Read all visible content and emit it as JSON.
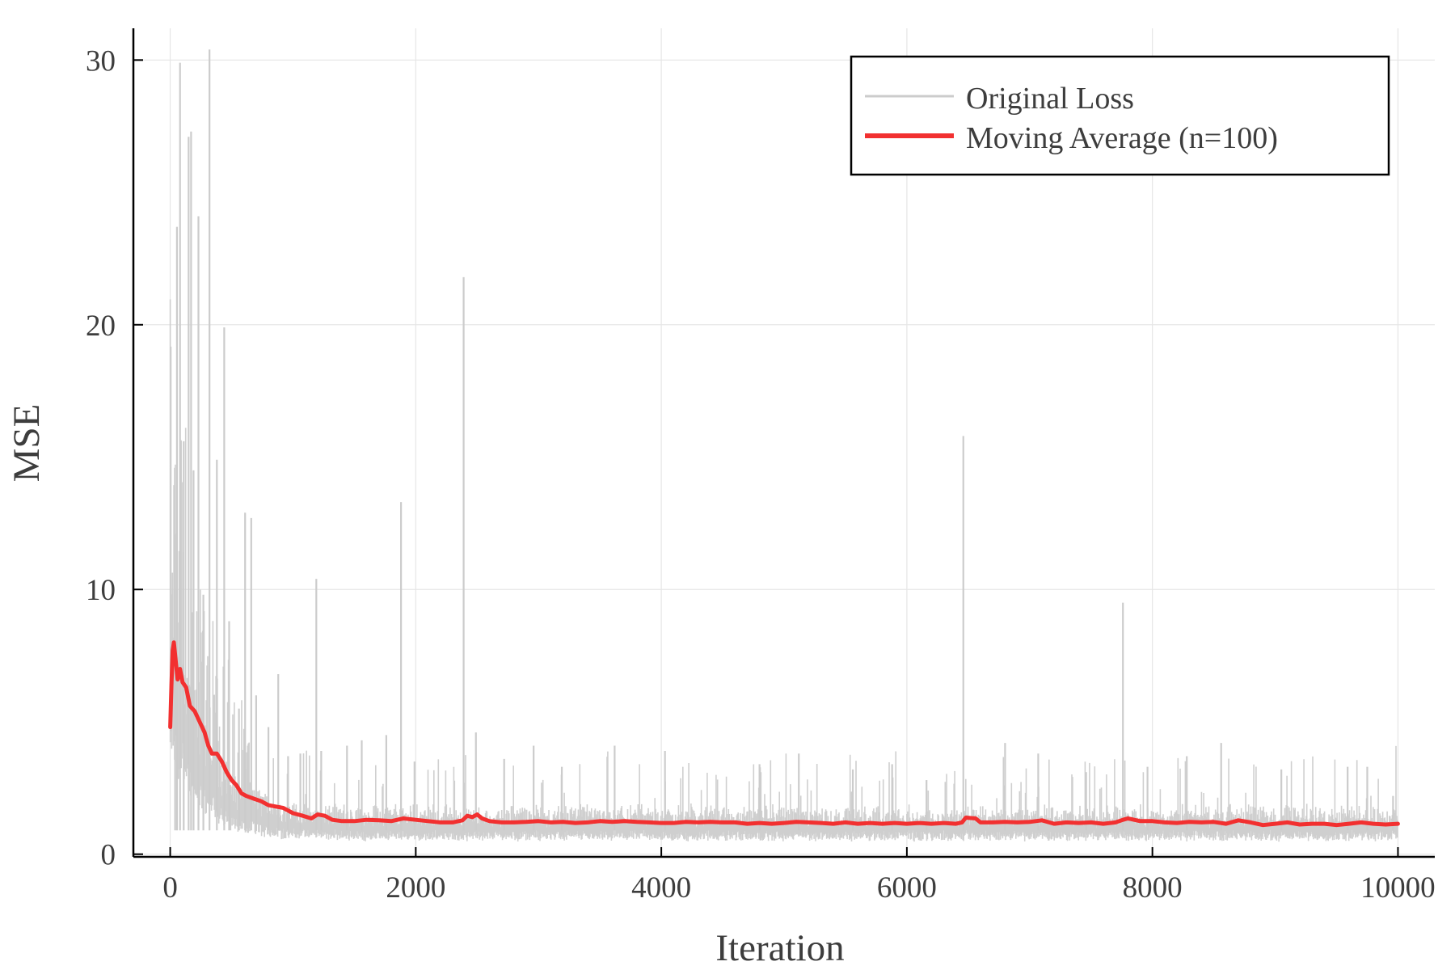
{
  "chart_data": {
    "type": "line",
    "title": "",
    "xlabel": "Iteration",
    "ylabel": "MSE",
    "xlim": [
      -300,
      10300
    ],
    "ylim": [
      -0.1,
      31.2
    ],
    "xticks": [
      0,
      2000,
      4000,
      6000,
      8000,
      10000
    ],
    "xtick_labels": [
      "0",
      "2000",
      "4000",
      "6000",
      "8000",
      "10000"
    ],
    "yticks": [
      0,
      10,
      20,
      30
    ],
    "ytick_labels": [
      "0",
      "10",
      "20",
      "30"
    ],
    "grid": true,
    "legend_position": "top-right",
    "colors": {
      "original": "#cccccc",
      "moving_average": "#f23030",
      "grid": "#e6e6e6",
      "axis": "#000000"
    },
    "series": [
      {
        "name": "Original Loss",
        "color": "#cccccc",
        "note_points": "representative peaks of the noisy per-iteration loss",
        "spikes": [
          [
            40,
            12.1
          ],
          [
            55,
            23.7
          ],
          [
            80,
            29.9
          ],
          [
            110,
            15.6
          ],
          [
            150,
            27.1
          ],
          [
            170,
            27.3
          ],
          [
            190,
            14.5
          ],
          [
            230,
            24.1
          ],
          [
            270,
            9.8
          ],
          [
            320,
            30.4
          ],
          [
            380,
            14.9
          ],
          [
            440,
            19.9
          ],
          [
            480,
            8.8
          ],
          [
            560,
            5.5
          ],
          [
            610,
            12.9
          ],
          [
            660,
            12.7
          ],
          [
            700,
            6.0
          ],
          [
            800,
            4.8
          ],
          [
            880,
            6.8
          ],
          [
            960,
            3.7
          ],
          [
            1060,
            3.8
          ],
          [
            1190,
            10.4
          ],
          [
            1230,
            3.9
          ],
          [
            1440,
            4.1
          ],
          [
            1560,
            4.3
          ],
          [
            1760,
            4.5
          ],
          [
            1880,
            13.3
          ],
          [
            1990,
            3.5
          ],
          [
            2390,
            21.8
          ],
          [
            2490,
            4.6
          ],
          [
            2720,
            3.6
          ],
          [
            2960,
            4.1
          ],
          [
            3190,
            3.3
          ],
          [
            3620,
            4.1
          ],
          [
            4030,
            3.9
          ],
          [
            4800,
            3.4
          ],
          [
            5120,
            3.8
          ],
          [
            5560,
            3.2
          ],
          [
            5880,
            3.4
          ],
          [
            6160,
            2.8
          ],
          [
            6460,
            15.8
          ],
          [
            6800,
            4.2
          ],
          [
            7070,
            3.8
          ],
          [
            7460,
            3.1
          ],
          [
            7760,
            9.5
          ],
          [
            7960,
            3.3
          ],
          [
            8280,
            3.7
          ],
          [
            8560,
            4.2
          ],
          [
            9050,
            3.2
          ],
          [
            9590,
            3.3
          ],
          [
            9750,
            3.3
          ],
          [
            9960,
            2.2
          ]
        ]
      },
      {
        "name": "Moving Average (n=100)",
        "color": "#f23030",
        "points": [
          [
            0,
            4.8
          ],
          [
            10,
            6.4
          ],
          [
            20,
            7.7
          ],
          [
            30,
            8.0
          ],
          [
            45,
            7.3
          ],
          [
            60,
            6.6
          ],
          [
            80,
            7.0
          ],
          [
            100,
            6.5
          ],
          [
            130,
            6.3
          ],
          [
            160,
            5.6
          ],
          [
            200,
            5.4
          ],
          [
            240,
            5.0
          ],
          [
            280,
            4.6
          ],
          [
            310,
            4.1
          ],
          [
            340,
            3.8
          ],
          [
            380,
            3.8
          ],
          [
            420,
            3.5
          ],
          [
            460,
            3.1
          ],
          [
            500,
            2.8
          ],
          [
            540,
            2.6
          ],
          [
            580,
            2.3
          ],
          [
            620,
            2.2
          ],
          [
            680,
            2.1
          ],
          [
            740,
            2.0
          ],
          [
            800,
            1.85
          ],
          [
            860,
            1.8
          ],
          [
            920,
            1.75
          ],
          [
            1000,
            1.55
          ],
          [
            1080,
            1.45
          ],
          [
            1150,
            1.35
          ],
          [
            1200,
            1.5
          ],
          [
            1260,
            1.45
          ],
          [
            1320,
            1.3
          ],
          [
            1400,
            1.25
          ],
          [
            1500,
            1.25
          ],
          [
            1600,
            1.3
          ],
          [
            1700,
            1.28
          ],
          [
            1800,
            1.25
          ],
          [
            1900,
            1.35
          ],
          [
            2000,
            1.3
          ],
          [
            2100,
            1.25
          ],
          [
            2200,
            1.2
          ],
          [
            2300,
            1.2
          ],
          [
            2380,
            1.28
          ],
          [
            2420,
            1.45
          ],
          [
            2460,
            1.4
          ],
          [
            2500,
            1.5
          ],
          [
            2540,
            1.35
          ],
          [
            2600,
            1.25
          ],
          [
            2700,
            1.2
          ],
          [
            2800,
            1.2
          ],
          [
            2900,
            1.22
          ],
          [
            3000,
            1.25
          ],
          [
            3100,
            1.2
          ],
          [
            3200,
            1.22
          ],
          [
            3300,
            1.18
          ],
          [
            3400,
            1.2
          ],
          [
            3500,
            1.25
          ],
          [
            3600,
            1.22
          ],
          [
            3700,
            1.25
          ],
          [
            3800,
            1.22
          ],
          [
            3900,
            1.2
          ],
          [
            4000,
            1.18
          ],
          [
            4100,
            1.18
          ],
          [
            4200,
            1.22
          ],
          [
            4300,
            1.2
          ],
          [
            4400,
            1.22
          ],
          [
            4500,
            1.2
          ],
          [
            4600,
            1.2
          ],
          [
            4700,
            1.15
          ],
          [
            4800,
            1.18
          ],
          [
            4900,
            1.15
          ],
          [
            5000,
            1.18
          ],
          [
            5100,
            1.22
          ],
          [
            5200,
            1.2
          ],
          [
            5300,
            1.18
          ],
          [
            5400,
            1.15
          ],
          [
            5500,
            1.2
          ],
          [
            5600,
            1.15
          ],
          [
            5700,
            1.18
          ],
          [
            5800,
            1.15
          ],
          [
            5900,
            1.18
          ],
          [
            6000,
            1.15
          ],
          [
            6100,
            1.18
          ],
          [
            6200,
            1.15
          ],
          [
            6300,
            1.18
          ],
          [
            6400,
            1.15
          ],
          [
            6450,
            1.2
          ],
          [
            6480,
            1.38
          ],
          [
            6560,
            1.35
          ],
          [
            6600,
            1.2
          ],
          [
            6700,
            1.2
          ],
          [
            6800,
            1.22
          ],
          [
            6900,
            1.2
          ],
          [
            7000,
            1.22
          ],
          [
            7100,
            1.28
          ],
          [
            7200,
            1.15
          ],
          [
            7300,
            1.2
          ],
          [
            7400,
            1.18
          ],
          [
            7500,
            1.2
          ],
          [
            7600,
            1.15
          ],
          [
            7700,
            1.2
          ],
          [
            7760,
            1.3
          ],
          [
            7800,
            1.35
          ],
          [
            7900,
            1.25
          ],
          [
            8000,
            1.25
          ],
          [
            8100,
            1.2
          ],
          [
            8200,
            1.18
          ],
          [
            8300,
            1.22
          ],
          [
            8400,
            1.2
          ],
          [
            8500,
            1.22
          ],
          [
            8600,
            1.15
          ],
          [
            8700,
            1.28
          ],
          [
            8800,
            1.2
          ],
          [
            8900,
            1.1
          ],
          [
            9000,
            1.15
          ],
          [
            9100,
            1.2
          ],
          [
            9200,
            1.12
          ],
          [
            9300,
            1.15
          ],
          [
            9400,
            1.15
          ],
          [
            9500,
            1.1
          ],
          [
            9600,
            1.15
          ],
          [
            9700,
            1.2
          ],
          [
            9800,
            1.15
          ],
          [
            9900,
            1.12
          ],
          [
            10000,
            1.15
          ]
        ]
      }
    ]
  }
}
